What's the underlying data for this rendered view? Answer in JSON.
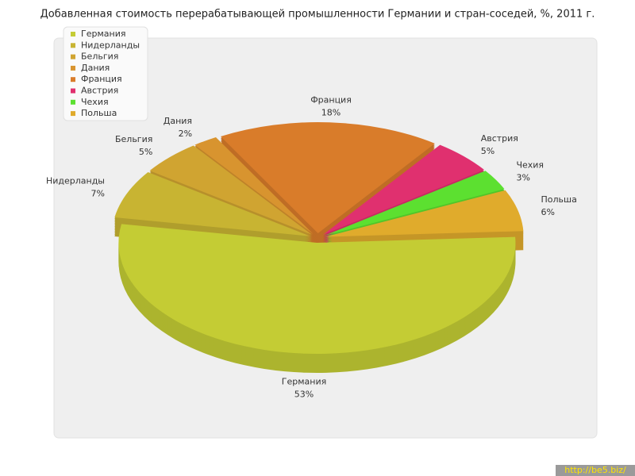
{
  "chart_data": {
    "type": "pie",
    "title": "Добавленная стоимость перерабатывающей промышленности Германии и стран-соседей, %, 2011 г.",
    "categories": [
      "Германия",
      "Нидерланды",
      "Бельгия",
      "Дания",
      "Франция",
      "Австрия",
      "Чехия",
      "Польша"
    ],
    "values": [
      53,
      7,
      5,
      2,
      18,
      5,
      3,
      6
    ],
    "value_labels": [
      "53%",
      "7%",
      "5%",
      "2%",
      "18%",
      "5%",
      "3%",
      "6%"
    ],
    "colors": [
      "#c4cc34",
      "#c8b432",
      "#d0a431",
      "#d8942f",
      "#d97c2a",
      "#e0306f",
      "#5ce030",
      "#e0ab2c"
    ],
    "legend": "top-left"
  },
  "watermark": "http://be5.biz/"
}
